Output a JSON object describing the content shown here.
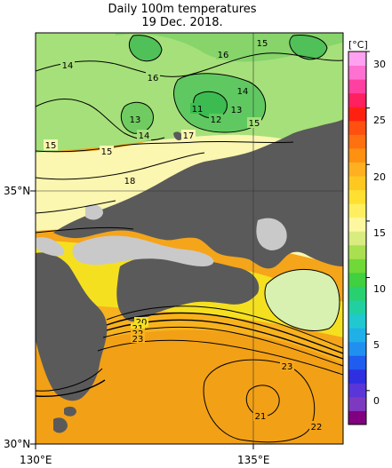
{
  "title": "Daily 100m temperatures",
  "date": "19 Dec. 2018.",
  "axes": {
    "lat_labels": [
      "35°N",
      "30°N"
    ],
    "lon_labels": [
      "130°E",
      "135°E"
    ]
  },
  "colorbar": {
    "unit": "[°C]",
    "ticks": [
      "30",
      "25",
      "20",
      "15",
      "10",
      "5",
      "0"
    ],
    "colors": [
      "#800080",
      "#7d3ac0",
      "#5a36d8",
      "#2f2ee0",
      "#1f5cf0",
      "#2090f0",
      "#20b0e8",
      "#20c8d0",
      "#20d0a0",
      "#28d070",
      "#40d040",
      "#70d838",
      "#a8e050",
      "#d8ec80",
      "#fff7a0",
      "#ffef60",
      "#ffe030",
      "#ffc820",
      "#ffb020",
      "#ff9010",
      "#ff7010",
      "#ff5010",
      "#ff2010",
      "#ff2060",
      "#ff40a0",
      "#ff70d0",
      "#ffa0f0"
    ]
  },
  "contour_labels": [
    {
      "text": "14",
      "name": "contour-label-14-a"
    },
    {
      "text": "15",
      "name": "contour-label-15-a"
    },
    {
      "text": "16",
      "name": "contour-label-16-a"
    },
    {
      "text": "16",
      "name": "contour-label-16-b"
    },
    {
      "text": "14",
      "name": "contour-label-14-b"
    },
    {
      "text": "11",
      "name": "contour-label-11"
    },
    {
      "text": "13",
      "name": "contour-label-13-a"
    },
    {
      "text": "12",
      "name": "contour-label-12"
    },
    {
      "text": "15",
      "name": "contour-label-15-b"
    },
    {
      "text": "13",
      "name": "contour-label-13-b"
    },
    {
      "text": "14",
      "name": "contour-label-14-c"
    },
    {
      "text": "17",
      "name": "contour-label-17"
    },
    {
      "text": "15",
      "name": "contour-label-15-c"
    },
    {
      "text": "15",
      "name": "contour-label-15-d"
    },
    {
      "text": "18",
      "name": "contour-label-18"
    },
    {
      "text": "20",
      "name": "contour-label-20"
    },
    {
      "text": "21",
      "name": "contour-label-21-a"
    },
    {
      "text": "22",
      "name": "contour-label-22-a"
    },
    {
      "text": "23",
      "name": "contour-label-23-a"
    },
    {
      "text": "23",
      "name": "contour-label-23-b"
    },
    {
      "text": "21",
      "name": "contour-label-21-b"
    },
    {
      "text": "22",
      "name": "contour-label-22-b"
    }
  ]
}
